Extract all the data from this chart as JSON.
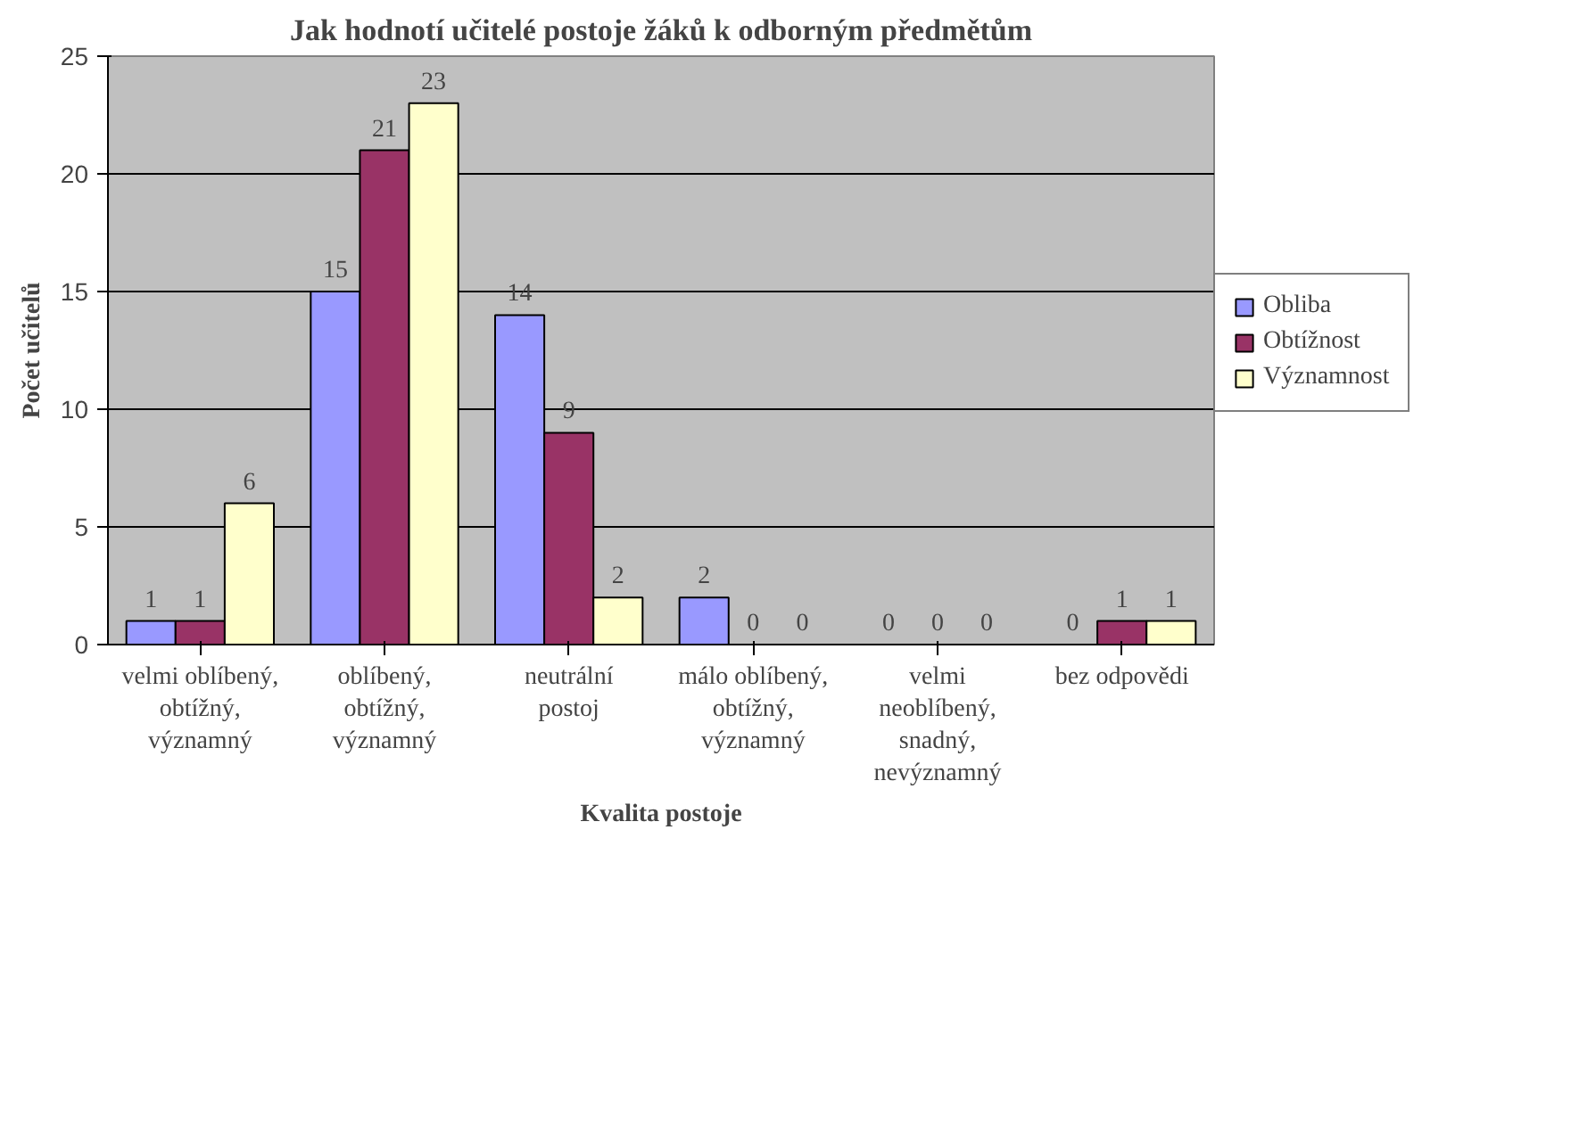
{
  "chart_data": {
    "type": "bar",
    "title": "Jak hodnotí učitelé postoje žáků k odborným předmětům",
    "xlabel": "Kvalita postoje",
    "ylabel": "Počet učitelů",
    "categories": [
      "velmi oblíbený, obtížný, významný",
      "oblíbený, obtížný, významný",
      "neutrální postoj",
      "málo oblíbený, obtížný, významný",
      "velmi neoblíbený, snadný, nevýznamný",
      "bez odpovědi"
    ],
    "series": [
      {
        "name": "Obliba",
        "color": "#9999ff",
        "values": [
          1,
          15,
          14,
          2,
          0,
          0
        ]
      },
      {
        "name": "Obtížnost",
        "color": "#993366",
        "values": [
          1,
          21,
          9,
          0,
          0,
          1
        ]
      },
      {
        "name": "Významnost",
        "color": "#ffffcc",
        "values": [
          6,
          23,
          2,
          0,
          0,
          1
        ]
      }
    ],
    "ylim": [
      0,
      25
    ],
    "yticks": [
      0,
      5,
      10,
      15,
      20,
      25
    ],
    "grid": "y",
    "legend": "right",
    "data_labels": true
  }
}
